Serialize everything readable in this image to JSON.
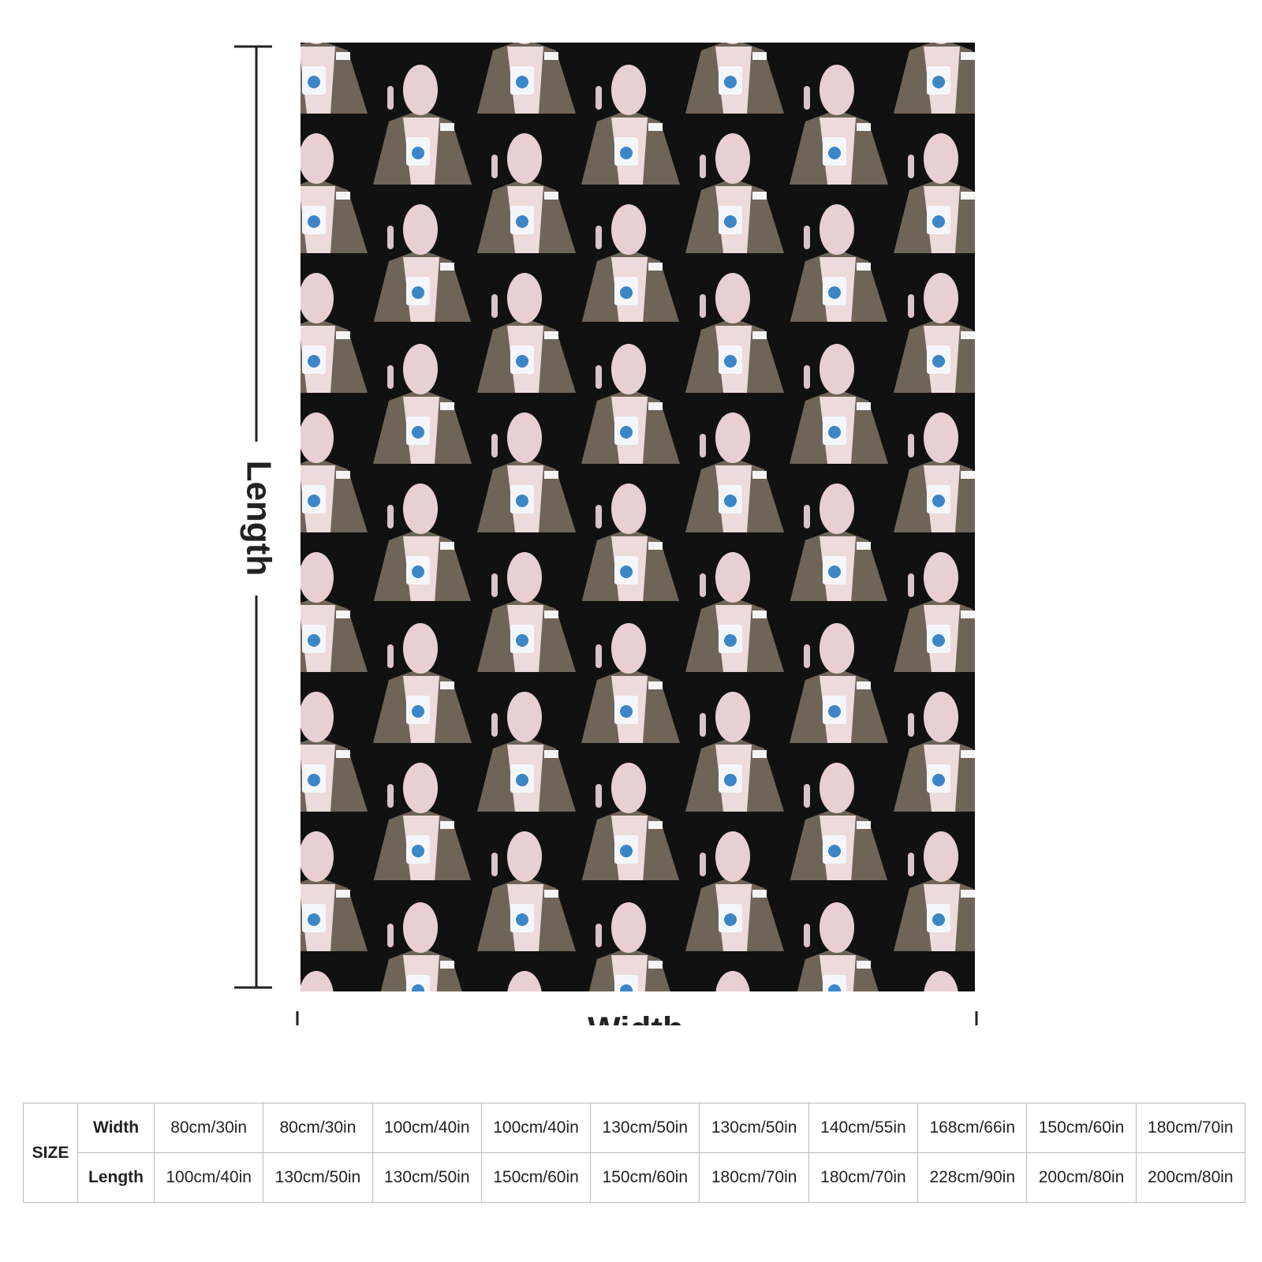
{
  "diagram": {
    "length_label": "Length",
    "width_label": "Width"
  },
  "table": {
    "size_label": "SIZE",
    "rows": [
      {
        "label": "Width",
        "cells": [
          "80cm/30in",
          "80cm/30in",
          "100cm/40in",
          "100cm/40in",
          "130cm/50in",
          "130cm/50in",
          "140cm/55in",
          "168cm/66in",
          "150cm/60in",
          "180cm/70in"
        ]
      },
      {
        "label": "Length",
        "cells": [
          "100cm/40in",
          "130cm/50in",
          "130cm/50in",
          "150cm/60in",
          "150cm/60in",
          "180cm/70in",
          "180cm/70in",
          "228cm/90in",
          "200cm/80in",
          "200cm/80in"
        ]
      }
    ]
  }
}
